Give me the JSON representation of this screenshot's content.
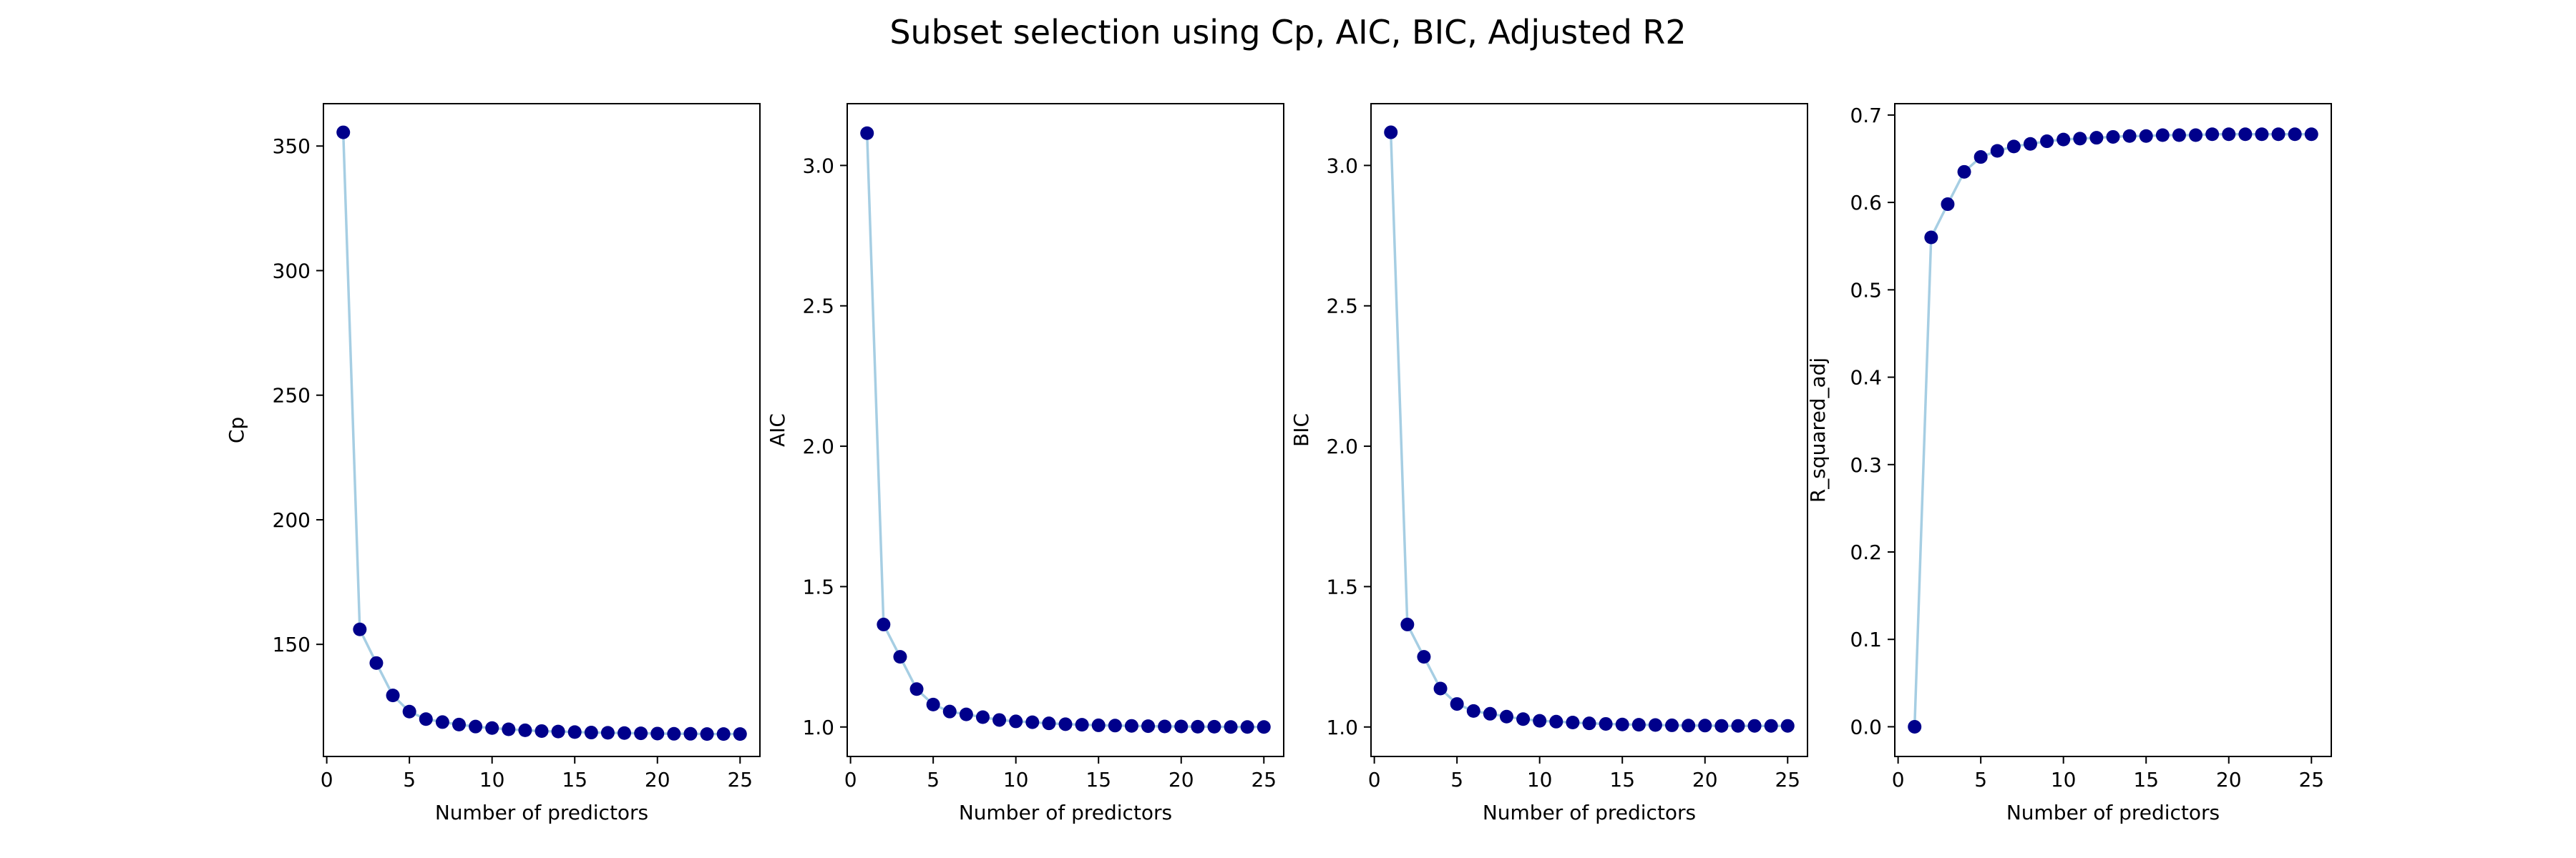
{
  "figure": {
    "title": "Subset selection using Cp, AIC, BIC, Adjusted R2"
  },
  "colors": {
    "line": "#a6cee3",
    "marker": "#00008b",
    "axis": "#000000",
    "background": "#ffffff"
  },
  "chart_data": [
    {
      "type": "line",
      "xlabel": "Number of predictors",
      "ylabel": "Cp",
      "xlim": [
        -0.2,
        26.2
      ],
      "ylim": [
        105,
        367
      ],
      "xticks": [
        0,
        5,
        10,
        15,
        20,
        25
      ],
      "yticks": [
        150,
        200,
        250,
        300,
        350
      ],
      "grid": false,
      "x": [
        1,
        2,
        3,
        4,
        5,
        6,
        7,
        8,
        9,
        10,
        11,
        12,
        13,
        14,
        15,
        16,
        17,
        18,
        19,
        20,
        21,
        22,
        23,
        24,
        25
      ],
      "y": [
        355.5,
        156.0,
        142.5,
        129.5,
        123.0,
        120.0,
        118.8,
        117.8,
        117.0,
        116.4,
        115.9,
        115.5,
        115.2,
        115.0,
        114.8,
        114.6,
        114.5,
        114.4,
        114.3,
        114.2,
        114.1,
        114.1,
        114.0,
        114.0,
        114.0
      ]
    },
    {
      "type": "line",
      "xlabel": "Number of predictors",
      "ylabel": "AIC",
      "xlim": [
        -0.2,
        26.2
      ],
      "ylim": [
        0.895,
        3.22
      ],
      "xticks": [
        0,
        5,
        10,
        15,
        20,
        25
      ],
      "yticks": [
        1.0,
        1.5,
        2.0,
        2.5,
        3.0
      ],
      "ytick_labels": [
        "1.0",
        "1.5",
        "2.0",
        "2.5",
        "3.0"
      ],
      "grid": false,
      "x": [
        1,
        2,
        3,
        4,
        5,
        6,
        7,
        8,
        9,
        10,
        11,
        12,
        13,
        14,
        15,
        16,
        17,
        18,
        19,
        20,
        21,
        22,
        23,
        24,
        25
      ],
      "y": [
        3.115,
        1.365,
        1.25,
        1.135,
        1.08,
        1.055,
        1.045,
        1.035,
        1.025,
        1.02,
        1.017,
        1.013,
        1.01,
        1.008,
        1.006,
        1.005,
        1.004,
        1.003,
        1.002,
        1.002,
        1.001,
        1.001,
        1.0,
        1.0,
        1.0
      ]
    },
    {
      "type": "line",
      "xlabel": "Number of predictors",
      "ylabel": "BIC",
      "xlim": [
        -0.2,
        26.2
      ],
      "ylim": [
        0.895,
        3.22
      ],
      "xticks": [
        0,
        5,
        10,
        15,
        20,
        25
      ],
      "yticks": [
        1.0,
        1.5,
        2.0,
        2.5,
        3.0
      ],
      "ytick_labels": [
        "1.0",
        "1.5",
        "2.0",
        "2.5",
        "3.0"
      ],
      "grid": false,
      "x": [
        1,
        2,
        3,
        4,
        5,
        6,
        7,
        8,
        9,
        10,
        11,
        12,
        13,
        14,
        15,
        16,
        17,
        18,
        19,
        20,
        21,
        22,
        23,
        24,
        25
      ],
      "y": [
        3.118,
        1.365,
        1.25,
        1.137,
        1.082,
        1.057,
        1.047,
        1.037,
        1.028,
        1.022,
        1.019,
        1.016,
        1.013,
        1.011,
        1.009,
        1.008,
        1.007,
        1.006,
        1.005,
        1.005,
        1.004,
        1.004,
        1.004,
        1.004,
        1.004
      ]
    },
    {
      "type": "line",
      "xlabel": "Number of predictors",
      "ylabel": "R_squared_adj",
      "xlim": [
        -0.2,
        26.2
      ],
      "ylim": [
        -0.034,
        0.713
      ],
      "xticks": [
        0,
        5,
        10,
        15,
        20,
        25
      ],
      "yticks": [
        0.0,
        0.1,
        0.2,
        0.3,
        0.4,
        0.5,
        0.6,
        0.7
      ],
      "ytick_labels": [
        "0.0",
        "0.1",
        "0.2",
        "0.3",
        "0.4",
        "0.5",
        "0.6",
        "0.7"
      ],
      "grid": false,
      "x": [
        1,
        2,
        3,
        4,
        5,
        6,
        7,
        8,
        9,
        10,
        11,
        12,
        13,
        14,
        15,
        16,
        17,
        18,
        19,
        20,
        21,
        22,
        23,
        24,
        25
      ],
      "y": [
        0.0,
        0.56,
        0.598,
        0.635,
        0.652,
        0.659,
        0.664,
        0.667,
        0.67,
        0.672,
        0.673,
        0.674,
        0.675,
        0.676,
        0.676,
        0.677,
        0.677,
        0.677,
        0.678,
        0.678,
        0.678,
        0.678,
        0.678,
        0.678,
        0.678
      ]
    }
  ]
}
